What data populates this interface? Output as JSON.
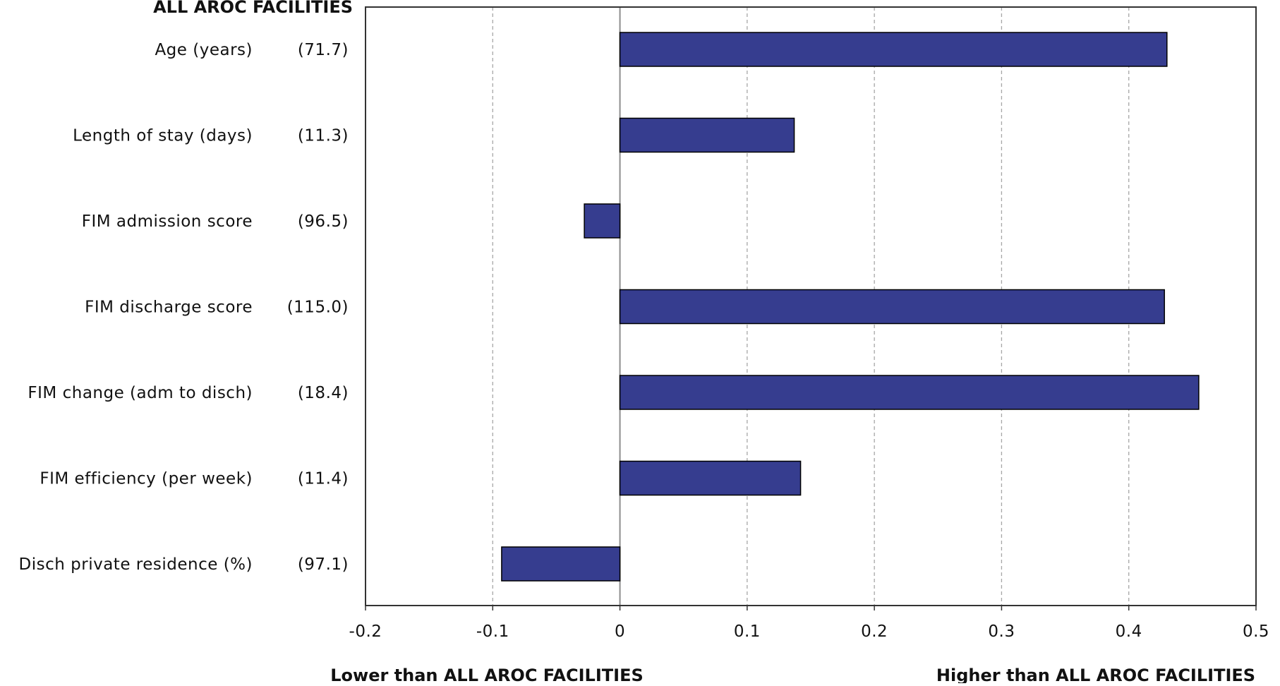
{
  "chart_data": {
    "type": "bar",
    "orientation": "horizontal",
    "header": "ALL AROC FACILITIES",
    "categories": [
      "Age (years)",
      "Length of stay (days)",
      "FIM admission score",
      "FIM discharge score",
      "FIM change (adm to disch)",
      "FIM efficiency (per week)",
      "Disch private residence (%)"
    ],
    "reference_values": [
      "(71.7)",
      "(11.3)",
      "(96.5)",
      "(115.0)",
      "(18.4)",
      "(11.4)",
      "(97.1)"
    ],
    "values": [
      0.43,
      0.137,
      -0.028,
      0.428,
      0.455,
      0.142,
      -0.093
    ],
    "xlim": [
      -0.2,
      0.5
    ],
    "xticks": [
      -0.2,
      -0.1,
      0,
      0.1,
      0.2,
      0.3,
      0.4,
      0.5
    ],
    "tick_labels": [
      "-0.2",
      "-0.1",
      "0",
      "0.1",
      "0.2",
      "0.3",
      "0.4",
      "0.5"
    ],
    "grid": "vertical dashed",
    "lower_label": "Lower than ALL AROC FACILITIES",
    "higher_label": "Higher than ALL AROC FACILITIES",
    "bar_color": "#363d8f",
    "bar_edge_color": "#000000",
    "grid_color": "#a6a6a6",
    "zero_line_color": "#8c8c8c"
  }
}
